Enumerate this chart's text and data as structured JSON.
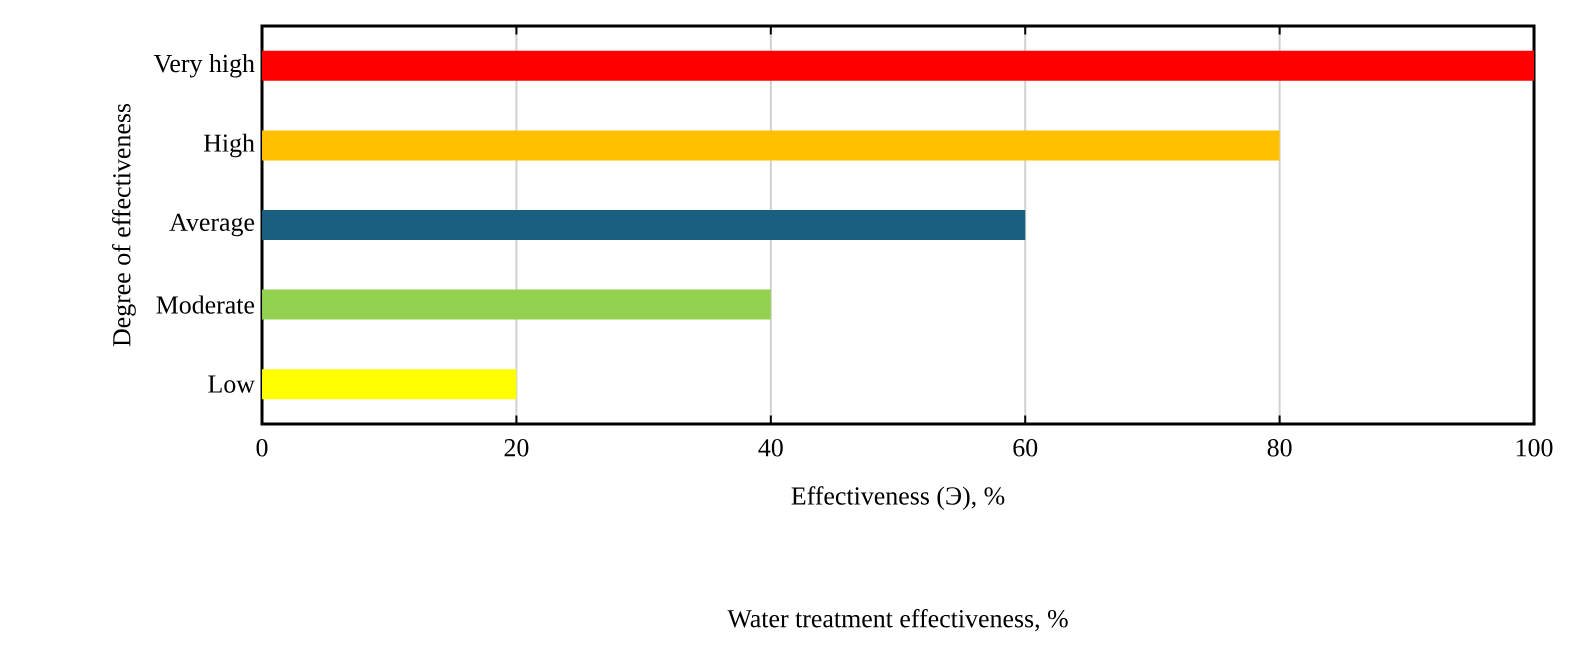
{
  "chart_data": {
    "type": "bar",
    "orientation": "horizontal",
    "xlabel": "Effectiveness (Э), %",
    "ylabel": "Degree of effectiveness",
    "categories": [
      "Very high",
      "High",
      "Average",
      "Moderate",
      "Low"
    ],
    "values": [
      100,
      80,
      60,
      40,
      20
    ],
    "colors": [
      "#ff0000",
      "#ffc000",
      "#1a5e80",
      "#92d050",
      "#ffff00"
    ],
    "xlim": [
      0,
      100
    ],
    "xticks": [
      0,
      20,
      40,
      60,
      80,
      100
    ],
    "grid": "x",
    "annotations": [
      "Water treatment effectiveness, %"
    ]
  }
}
